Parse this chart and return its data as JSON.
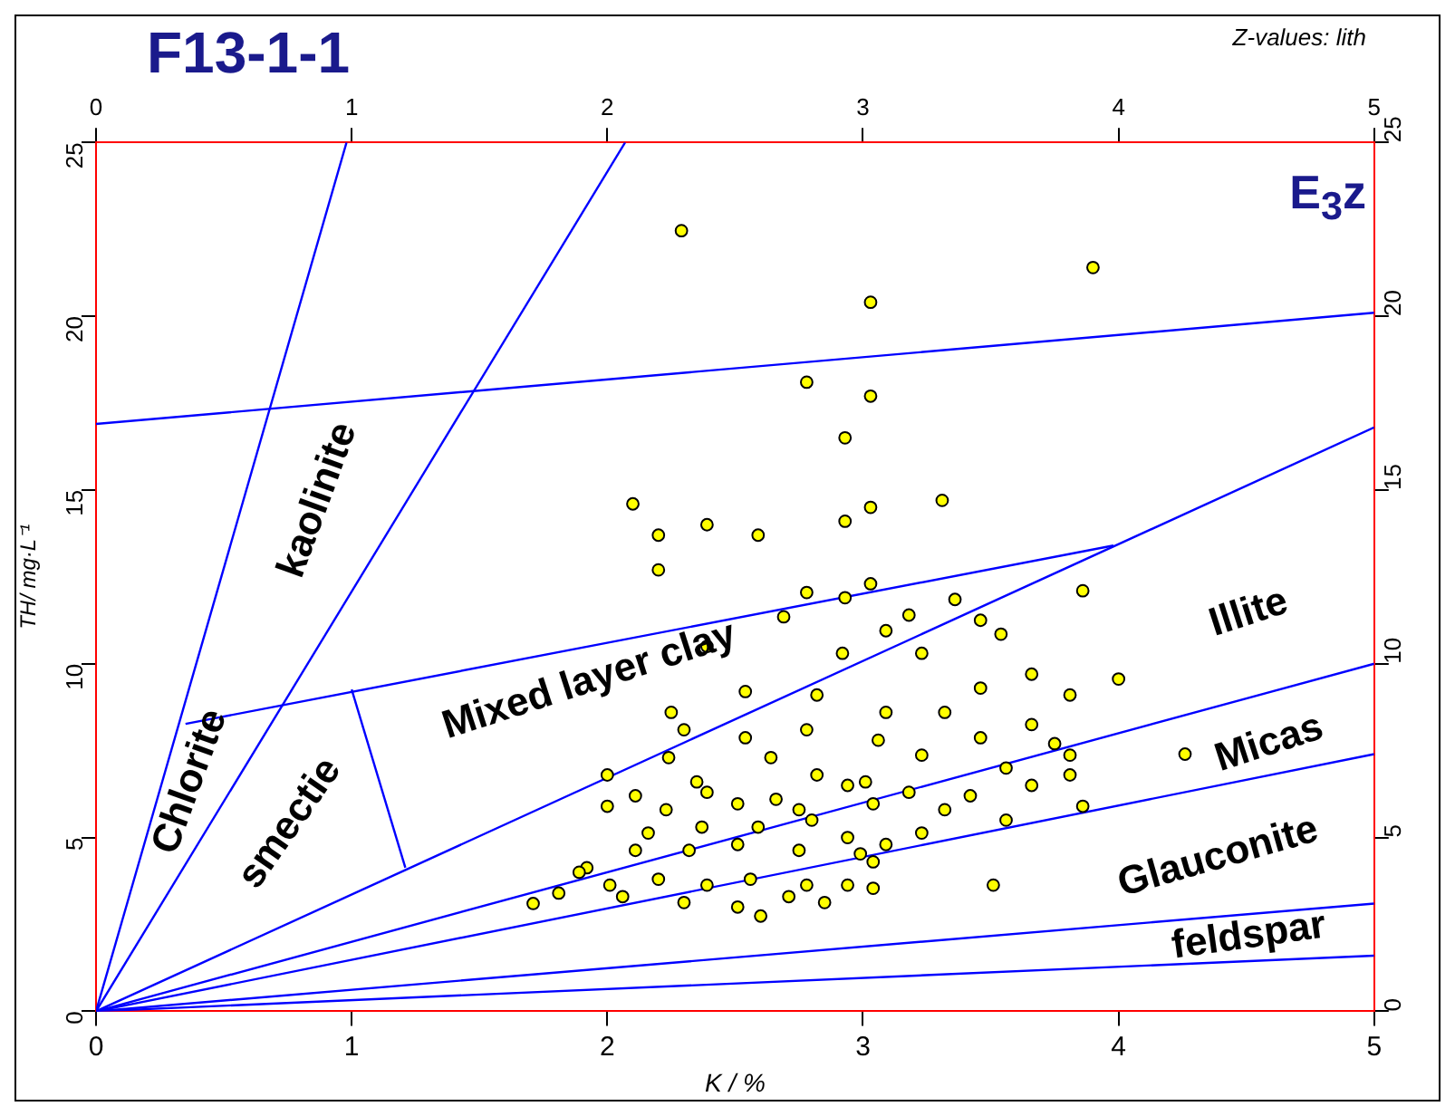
{
  "chart_data": {
    "type": "scatter",
    "title": "F13-1-1",
    "xlabel": "K / %",
    "ylabel": "TH/ mg·L⁻¹",
    "xlim": [
      0,
      5
    ],
    "xticks": [
      0,
      1,
      2,
      3,
      4,
      5
    ],
    "x2lim": [
      0,
      5
    ],
    "x2ticks": [
      0,
      1,
      2,
      3,
      4,
      5
    ],
    "ylim": [
      0,
      25
    ],
    "yticks": [
      0,
      5,
      10,
      15,
      20,
      25
    ],
    "y2lim": [
      0,
      25
    ],
    "y2ticks": [
      0,
      5,
      10,
      15,
      20,
      25
    ],
    "grid": false,
    "legend": false,
    "marker": "circle",
    "annotations": [
      "Z-values: lith",
      "E$_{3}$z",
      "kaolinite",
      "Chlorite",
      "smectie",
      "Mixed layer clay",
      "Illite",
      "Micas",
      "Glauconite",
      "feldspar"
    ],
    "series": [
      {
        "color": "#ffff00",
        "x": [
          2.29,
          3.9,
          3.03,
          2.78,
          3.03,
          2.93,
          2.1,
          3.31,
          2.39,
          3.03,
          2.93,
          2.2,
          2.59,
          2.2,
          3.86,
          4.0,
          3.81,
          4.26,
          3.86,
          2.78,
          3.03,
          2.93,
          3.36,
          2.69,
          3.18,
          3.09,
          3.46,
          3.54,
          2.92,
          2.39,
          3.23,
          3.66,
          3.46,
          2.54,
          2.25,
          2.82,
          3.09,
          3.32,
          3.66,
          2.3,
          2.54,
          2.78,
          3.06,
          3.46,
          3.75,
          2.0,
          2.24,
          2.64,
          3.23,
          3.81,
          2.11,
          2.35,
          2.82,
          2.94,
          3.18,
          3.42,
          3.56,
          3.66,
          3.81,
          2.0,
          2.23,
          2.51,
          2.66,
          2.75,
          3.04,
          3.32,
          3.56,
          2.16,
          2.37,
          2.59,
          2.8,
          2.94,
          3.23,
          1.92,
          2.11,
          2.32,
          2.51,
          2.75,
          2.99,
          3.09,
          2.01,
          2.2,
          2.39,
          2.56,
          2.78,
          2.94,
          3.04,
          1.71,
          1.81,
          1.89,
          2.06,
          2.3,
          2.51,
          2.6,
          2.71,
          2.85,
          3.04,
          3.51,
          3.01,
          2.39
        ],
        "values": [
          22.46,
          21.4,
          20.4,
          18.1,
          17.7,
          16.5,
          14.6,
          14.7,
          14.0,
          14.5,
          14.1,
          13.7,
          13.7,
          12.7,
          12.1,
          9.56,
          9.1,
          7.4,
          5.9,
          12.05,
          12.3,
          11.9,
          11.85,
          11.35,
          11.4,
          10.95,
          11.25,
          10.85,
          10.3,
          10.5,
          10.3,
          9.7,
          9.3,
          9.2,
          8.6,
          9.1,
          8.6,
          8.6,
          8.25,
          8.1,
          7.87,
          8.1,
          7.8,
          7.87,
          7.7,
          6.8,
          7.3,
          7.3,
          7.37,
          7.37,
          6.2,
          6.6,
          6.8,
          6.5,
          6.3,
          6.2,
          7.0,
          6.5,
          6.8,
          5.9,
          5.8,
          5.97,
          6.1,
          5.8,
          5.97,
          5.8,
          5.5,
          5.13,
          5.3,
          5.3,
          5.5,
          5.0,
          5.13,
          4.13,
          4.63,
          4.63,
          4.8,
          4.63,
          4.53,
          4.8,
          3.63,
          3.8,
          3.63,
          3.8,
          3.63,
          3.63,
          4.3,
          3.1,
          3.4,
          4.0,
          3.3,
          3.13,
          3.0,
          2.74,
          3.3,
          3.13,
          3.54,
          3.63,
          6.6,
          6.3
        ]
      },
      {
        "type": "line",
        "color": "#0000ff",
        "marker": "none",
        "x": [
          0,
          0.98
        ],
        "values": [
          0,
          25
        ]
      },
      {
        "type": "line",
        "color": "#0000ff",
        "marker": "none",
        "x": [
          0,
          2.07
        ],
        "values": [
          0,
          25
        ]
      },
      {
        "type": "line",
        "color": "#0000ff",
        "marker": "none",
        "x": [
          0,
          5
        ],
        "values": [
          16.9,
          20.1
        ]
      },
      {
        "type": "line",
        "color": "#0000ff",
        "marker": "none",
        "x": [
          0.35,
          3.98
        ],
        "values": [
          8.27,
          13.4
        ]
      },
      {
        "type": "line",
        "color": "#0000ff",
        "marker": "none",
        "x": [
          1.0,
          1.21
        ],
        "values": [
          9.26,
          4.13
        ]
      },
      {
        "type": "line",
        "color": "#0000ff",
        "marker": "none",
        "x": [
          0,
          5
        ],
        "values": [
          0,
          16.8
        ]
      },
      {
        "type": "line",
        "color": "#0000ff",
        "marker": "none",
        "x": [
          0,
          5
        ],
        "values": [
          0,
          10.0
        ]
      },
      {
        "type": "line",
        "color": "#0000ff",
        "marker": "none",
        "x": [
          0,
          5
        ],
        "values": [
          0,
          7.4
        ]
      },
      {
        "type": "line",
        "color": "#0000ff",
        "marker": "none",
        "x": [
          0,
          5
        ],
        "values": [
          0,
          3.1
        ]
      },
      {
        "type": "line",
        "color": "#0000ff",
        "marker": "none",
        "x": [
          0,
          5
        ],
        "values": [
          0,
          1.6
        ]
      }
    ]
  }
}
